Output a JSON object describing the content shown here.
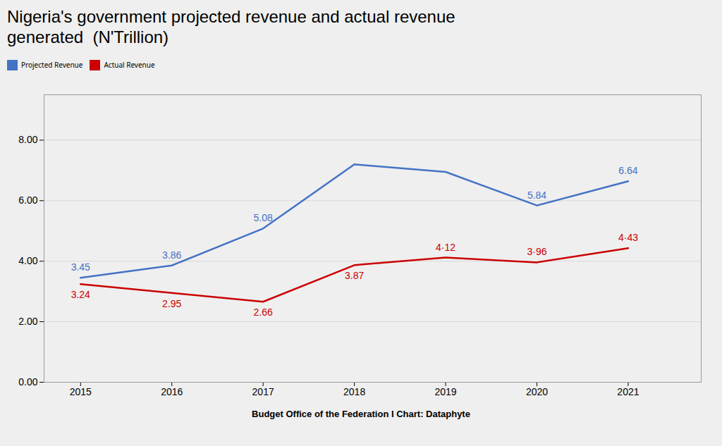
{
  "chart_data": {
    "type": "line",
    "title": "Nigeria's government projected revenue and actual revenue\ngenerated  (N'Trillion)",
    "x": [
      2015,
      2016,
      2017,
      2018,
      2019,
      2020,
      2021
    ],
    "series": [
      {
        "name": "Projected Revenue",
        "color": "#4472C4",
        "values": [
          3.45,
          3.86,
          5.08,
          7.2,
          6.95,
          5.84,
          6.64
        ],
        "value_labels": [
          "3.45",
          "3.86",
          "5.08",
          null,
          null,
          "5.84",
          "6.64"
        ]
      },
      {
        "name": "Actual Revenue",
        "color": "#CC0000",
        "values": [
          3.24,
          2.95,
          2.66,
          3.87,
          4.12,
          3.96,
          4.43
        ],
        "value_labels": [
          "3.24",
          "2.95",
          "2.66",
          "3.87",
          "4·12",
          "3·96",
          "4·43"
        ]
      }
    ],
    "xlim": [
      2014.6,
      2021.8
    ],
    "xticks": [
      2015,
      2016,
      2017,
      2018,
      2019,
      2020,
      2021
    ],
    "ylim": [
      0,
      9.5
    ],
    "yticks": [
      {
        "value": 0,
        "label": "0.00"
      },
      {
        "value": 2,
        "label": "2.00"
      },
      {
        "value": 4,
        "label": "4.00"
      },
      {
        "value": 6,
        "label": "6.00"
      },
      {
        "value": 8,
        "label": "8.00"
      }
    ],
    "grid": true,
    "legend": "top",
    "data_labels": true,
    "annotations": [
      "Budget Office of the Federation I Chart: Dataphyte"
    ]
  }
}
